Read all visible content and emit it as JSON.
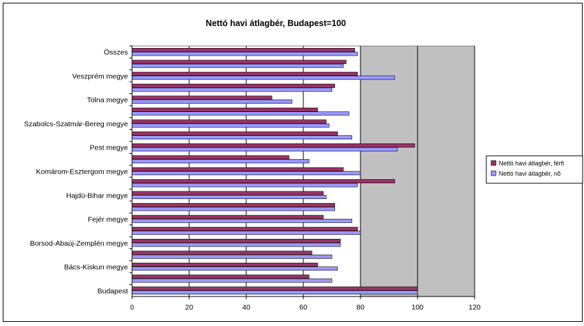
{
  "chart_data": {
    "type": "bar",
    "orientation": "horizontal",
    "title": "Nettó havi átlagbér, Budapest=100",
    "xlabel": "",
    "ylabel": "",
    "xlim": [
      0,
      120
    ],
    "xticks": [
      0,
      20,
      40,
      60,
      80,
      100,
      120
    ],
    "grid": true,
    "legend_position": "right",
    "categories": [
      "Budapest",
      "",
      "Bács-Kiskun megye",
      "",
      "Borsod-Abaúj-Zemplén megye",
      "",
      "Fejér megye",
      "",
      "Hajdú-Bihar megye",
      "",
      "Komárom-Esztergom megye",
      "",
      "Pest megye",
      "",
      "Szabolcs-Szatmár-Bereg megye",
      "",
      "Tolna megye",
      "",
      "Veszprém megye",
      "",
      "Összes"
    ],
    "series": [
      {
        "name": "Nettó havi átlagbér, férfi",
        "color": "#993366",
        "values": [
          100,
          62,
          65,
          63,
          73,
          79,
          67,
          71,
          67,
          92,
          74,
          55,
          99,
          72,
          68,
          65,
          49,
          71,
          79,
          75,
          78
        ]
      },
      {
        "name": "Nettó havi átlagbér, nő",
        "color": "#9999ff",
        "values": [
          100,
          70,
          72,
          70,
          73,
          80,
          77,
          71,
          68,
          79,
          80,
          62,
          93,
          77,
          69,
          76,
          56,
          70,
          92,
          74,
          79
        ]
      }
    ]
  }
}
